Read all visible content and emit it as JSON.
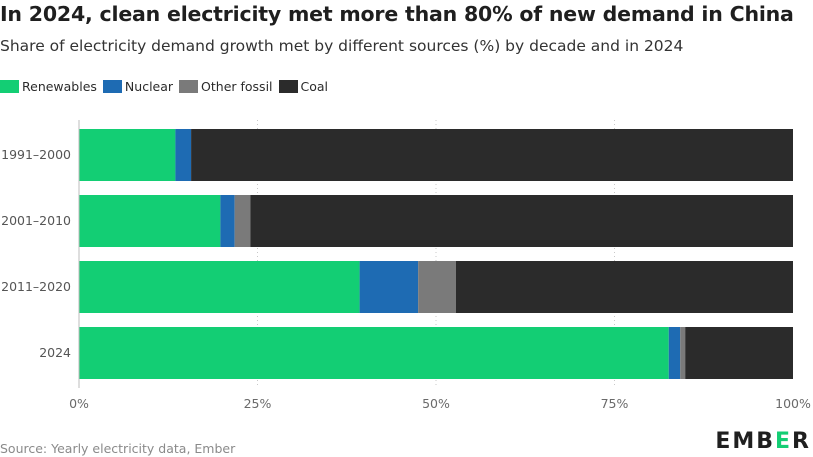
{
  "chart_data": {
    "type": "bar",
    "orientation": "horizontal",
    "stacked": true,
    "title": "In 2024, clean electricity met more than 80% of new demand in China",
    "subtitle": "Share of electricity demand growth met by different sources (%) by decade and in 2024",
    "categories": [
      "1991–2000",
      "2001–2010",
      "2011–2020",
      "2024"
    ],
    "series": [
      {
        "name": "Renewables",
        "color": "#13ce74",
        "values": [
          13.5,
          19.8,
          39.3,
          82.6
        ]
      },
      {
        "name": "Nuclear",
        "color": "#1e6bb3",
        "values": [
          2.2,
          2.0,
          8.2,
          1.6
        ]
      },
      {
        "name": "Other fossil",
        "color": "#7a7a7a",
        "values": [
          0.0,
          2.2,
          5.3,
          0.7
        ]
      },
      {
        "name": "Coal",
        "color": "#2b2b2b",
        "values": [
          84.3,
          76.0,
          47.2,
          15.1
        ]
      }
    ],
    "xlim": [
      0,
      100
    ],
    "x_ticks": [
      0,
      25,
      50,
      75,
      100
    ],
    "x_tick_labels": [
      "0%",
      "25%",
      "50%",
      "75%",
      "100%"
    ],
    "grid": true,
    "legend_position": "top-left",
    "source": "Source: Yearly electricity data, Ember"
  },
  "branding": {
    "logo_part1": "EMB",
    "logo_part2": "E",
    "logo_part3": "R"
  }
}
